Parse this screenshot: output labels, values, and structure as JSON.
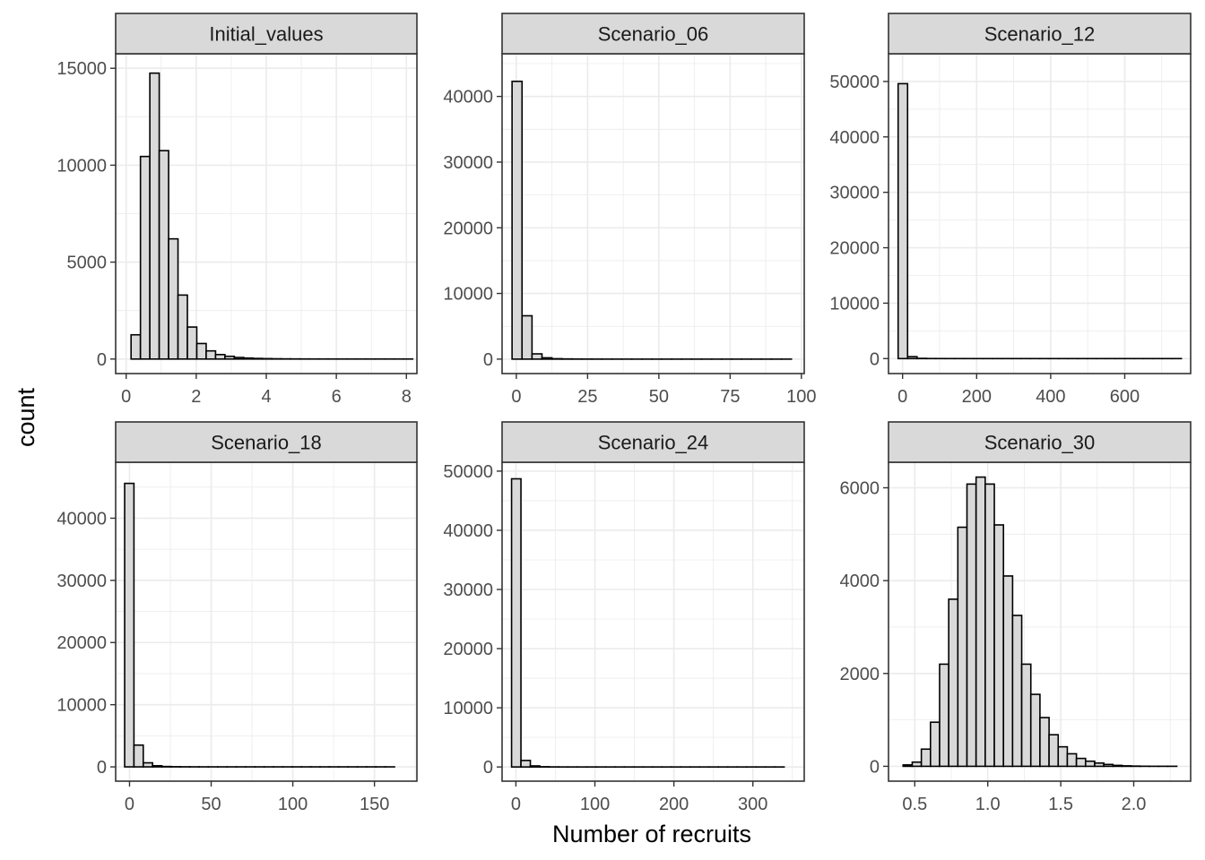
{
  "chart_data": {
    "type": "bar",
    "facet_layout": "3 columns x 2 rows",
    "xlabel": "Number of recruits",
    "ylabel": "count",
    "grid": true,
    "colors": {
      "bar_fill": "#d9d9d9",
      "bar_stroke": "#000000",
      "strip_fill": "#d9d9d9",
      "grid": "#ebebeb"
    },
    "panels": [
      {
        "title": "Initial_values",
        "xlim": [
          -0.3,
          8.3
        ],
        "ylim": [
          -750,
          15750
        ],
        "xticks": [
          0,
          2,
          4,
          6,
          8
        ],
        "xtick_labels": [
          "0",
          "2",
          "4",
          "6",
          "8"
        ],
        "yticks": [
          0,
          5000,
          10000,
          15000
        ],
        "ytick_labels": [
          "0",
          "5000",
          "10000",
          "15000"
        ],
        "bin_start": 0.14,
        "bin_width": 0.268,
        "counts": [
          1250,
          10450,
          14750,
          10750,
          6200,
          3300,
          1650,
          800,
          420,
          230,
          140,
          80,
          50,
          30,
          20,
          12,
          8,
          5,
          4,
          3,
          2,
          2,
          1,
          1,
          1,
          1,
          1,
          1,
          1,
          1
        ]
      },
      {
        "title": "Scenario_06",
        "xlim": [
          -5,
          101
        ],
        "ylim": [
          -2200,
          46500
        ],
        "xticks": [
          0,
          25,
          50,
          75,
          100
        ],
        "xtick_labels": [
          "0",
          "25",
          "50",
          "75",
          "100"
        ],
        "yticks": [
          0,
          10000,
          20000,
          30000,
          40000
        ],
        "ytick_labels": [
          "0",
          "10000",
          "20000",
          "30000",
          "40000"
        ],
        "bin_start": -1.5,
        "bin_width": 3.5,
        "counts": [
          42300,
          6600,
          800,
          200,
          60,
          30,
          15,
          8,
          5,
          3,
          2,
          2,
          1,
          1,
          1,
          1,
          1,
          1,
          1,
          1,
          1,
          1,
          1,
          1,
          1,
          1,
          1,
          1
        ]
      },
      {
        "title": "Scenario_12",
        "xlim": [
          -38,
          778
        ],
        "ylim": [
          -2700,
          55000
        ],
        "xticks": [
          0,
          200,
          400,
          600
        ],
        "xtick_labels": [
          "0",
          "200",
          "400",
          "600"
        ],
        "yticks": [
          0,
          10000,
          20000,
          30000,
          40000,
          50000
        ],
        "ytick_labels": [
          "0",
          "10000",
          "20000",
          "30000",
          "40000",
          "50000"
        ],
        "bin_start": -12,
        "bin_width": 25.5,
        "counts": [
          49600,
          350,
          40,
          10,
          5,
          3,
          2,
          1,
          1,
          1,
          1,
          1,
          1,
          1,
          1,
          1,
          1,
          1,
          1,
          1,
          1,
          1,
          1,
          1,
          1,
          1,
          1,
          1,
          1,
          1
        ]
      },
      {
        "title": "Scenario_18",
        "xlim": [
          -8.5,
          176
        ],
        "ylim": [
          -2300,
          49000
        ],
        "xticks": [
          0,
          50,
          100,
          150
        ],
        "xtick_labels": [
          "0",
          "50",
          "100",
          "150"
        ],
        "yticks": [
          0,
          10000,
          20000,
          30000,
          40000
        ],
        "ytick_labels": [
          "0",
          "10000",
          "20000",
          "30000",
          "40000"
        ],
        "bin_start": -3,
        "bin_width": 5.7,
        "counts": [
          45600,
          3500,
          650,
          180,
          60,
          25,
          12,
          6,
          3,
          2,
          1,
          1,
          1,
          1,
          1,
          1,
          1,
          1,
          1,
          1,
          1,
          1,
          1,
          1,
          1,
          1,
          1,
          1,
          1
        ]
      },
      {
        "title": "Scenario_24",
        "xlim": [
          -17.5,
          365
        ],
        "ylim": [
          -2400,
          51500
        ],
        "xticks": [
          0,
          100,
          200,
          300
        ],
        "xtick_labels": [
          "0",
          "100",
          "200",
          "300"
        ],
        "yticks": [
          0,
          10000,
          20000,
          30000,
          40000,
          50000
        ],
        "ytick_labels": [
          "0",
          "10000",
          "20000",
          "30000",
          "40000",
          "50000"
        ],
        "bin_start": -5.5,
        "bin_width": 11.9,
        "counts": [
          48700,
          1100,
          180,
          40,
          12,
          5,
          3,
          2,
          1,
          1,
          1,
          1,
          1,
          1,
          1,
          1,
          1,
          1,
          1,
          1,
          1,
          1,
          1,
          1,
          1,
          1,
          1,
          1,
          1
        ]
      },
      {
        "title": "Scenario_30",
        "xlim": [
          0.32,
          2.39
        ],
        "ylim": [
          -320,
          6550
        ],
        "xticks": [
          0.5,
          1.0,
          1.5,
          2.0
        ],
        "xtick_labels": [
          "0.5",
          "1.0",
          "1.5",
          "2.0"
        ],
        "yticks": [
          0,
          2000,
          4000,
          6000
        ],
        "ytick_labels": [
          "0",
          "2000",
          "4000",
          "6000"
        ],
        "bin_start": 0.42,
        "bin_width": 0.0625,
        "counts": [
          30,
          90,
          370,
          950,
          2200,
          3600,
          5150,
          6080,
          6230,
          6080,
          5200,
          4100,
          3250,
          2200,
          1550,
          1050,
          680,
          420,
          270,
          170,
          110,
          70,
          40,
          20,
          10,
          5,
          2,
          1,
          1,
          1
        ]
      }
    ]
  }
}
